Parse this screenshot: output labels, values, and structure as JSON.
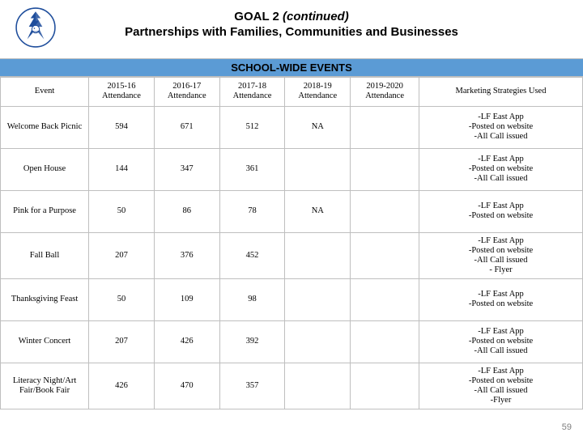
{
  "title": {
    "line1_a": "GOAL 2 ",
    "line1_b": "(continued)",
    "line2": "Partnerships with Families, Communities and Businesses"
  },
  "banner": "SCHOOL-WIDE EVENTS",
  "headers": {
    "c0": "Event",
    "c1": "2015-16 Attendance",
    "c2": "2016-17 Attendance",
    "c3": "2017-18 Attendance",
    "c4": "2018-19 Attendance",
    "c5": "2019-2020 Attendance",
    "c6": "Marketing Strategies Used"
  },
  "rows": [
    {
      "event": "Welcome Back Picnic",
      "y15": "594",
      "y16": "671",
      "y17": "512",
      "y18": "NA",
      "y19": "",
      "mkt": "-LF East App\n-Posted on website\n-All Call issued"
    },
    {
      "event": "Open House",
      "y15": "144",
      "y16": "347",
      "y17": "361",
      "y18": "",
      "y19": "",
      "mkt": "-LF East App\n-Posted on website\n-All Call issued"
    },
    {
      "event": "Pink for a Purpose",
      "y15": "50",
      "y16": "86",
      "y17": "78",
      "y18": "NA",
      "y19": "",
      "mkt": "-LF East App\n-Posted on website"
    },
    {
      "event": "Fall Ball",
      "y15": "207",
      "y16": "376",
      "y17": "452",
      "y18": "",
      "y19": "",
      "mkt": "-LF East App\n-Posted on website\n-All Call issued\n- Flyer"
    },
    {
      "event": "Thanksgiving Feast",
      "y15": "50",
      "y16": "109",
      "y17": "98",
      "y18": "",
      "y19": "",
      "mkt": "-LF East App\n-Posted on website"
    },
    {
      "event": "Winter Concert",
      "y15": "207",
      "y16": "426",
      "y17": "392",
      "y18": "",
      "y19": "",
      "mkt": "-LF East App\n-Posted on website\n-All Call issued"
    },
    {
      "event": "Literacy Night/Art Fair/Book Fair",
      "y15": "426",
      "y16": "470",
      "y17": "357",
      "y18": "",
      "y19": "",
      "mkt": "-LF East App\n-Posted on website\n-All Call issued\n-Flyer"
    }
  ],
  "page_number": "59",
  "colors": {
    "banner_bg": "#5b9bd5",
    "grid_border": "#bfbfbf",
    "logo_stroke": "#1f4e9c",
    "pagenum": "#7f7f7f"
  }
}
